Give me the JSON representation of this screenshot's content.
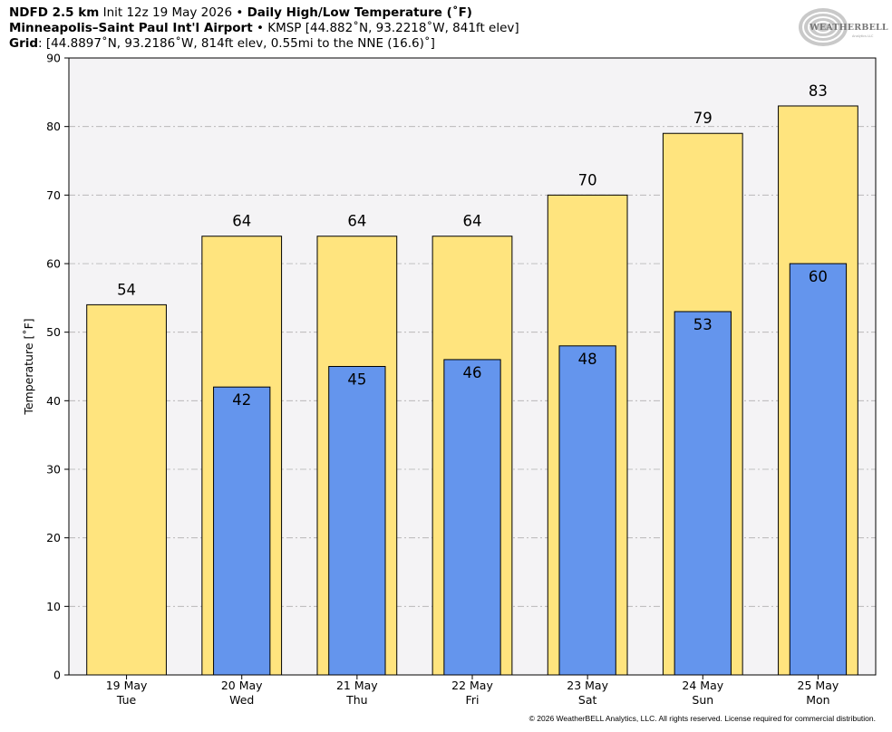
{
  "header": {
    "line1_model": "NDFD 2.5 km",
    "line1_init": " Init 12z 19 May 2026 • ",
    "line1_product": "Daily High/Low Temperature (˚F)",
    "line2_station": "Minneapolis–Saint Paul Int'l Airport",
    "line2_info": " • KMSP [44.882˚N, 93.2218˚W, 841ft elev]",
    "line3_label": "Grid",
    "line3_info": ": [44.8897˚N, 93.2186˚W, 814ft elev, 0.55mi to the NNE (16.6)˚]"
  },
  "logo": {
    "text": "WEATHERBELL",
    "sub": "Analytics LLC"
  },
  "footer": "© 2026 WeatherBELL Analytics, LLC. All rights reserved. License required for commercial distribution.",
  "colors": {
    "high": "#ffe47e",
    "low": "#6495ed",
    "plot_bg": "#f4f3f5",
    "grid": "#b0b0b0"
  },
  "chart_data": {
    "type": "bar",
    "title": "Daily High/Low Temperature (˚F)",
    "xlabel": "",
    "ylabel": "Temperature [˚F]",
    "ylim": [
      0,
      90
    ],
    "yticks": [
      0,
      10,
      20,
      30,
      40,
      50,
      60,
      70,
      80,
      90
    ],
    "grid": true,
    "categories": [
      {
        "date": "19 May",
        "day": "Tue"
      },
      {
        "date": "20 May",
        "day": "Wed"
      },
      {
        "date": "21 May",
        "day": "Thu"
      },
      {
        "date": "22 May",
        "day": "Fri"
      },
      {
        "date": "23 May",
        "day": "Sat"
      },
      {
        "date": "24 May",
        "day": "Sun"
      },
      {
        "date": "25 May",
        "day": "Mon"
      }
    ],
    "series": [
      {
        "key": "high",
        "values": [
          54,
          64,
          64,
          64,
          70,
          79,
          83
        ]
      },
      {
        "key": "low",
        "values": [
          null,
          42,
          45,
          46,
          48,
          53,
          60
        ]
      }
    ]
  }
}
